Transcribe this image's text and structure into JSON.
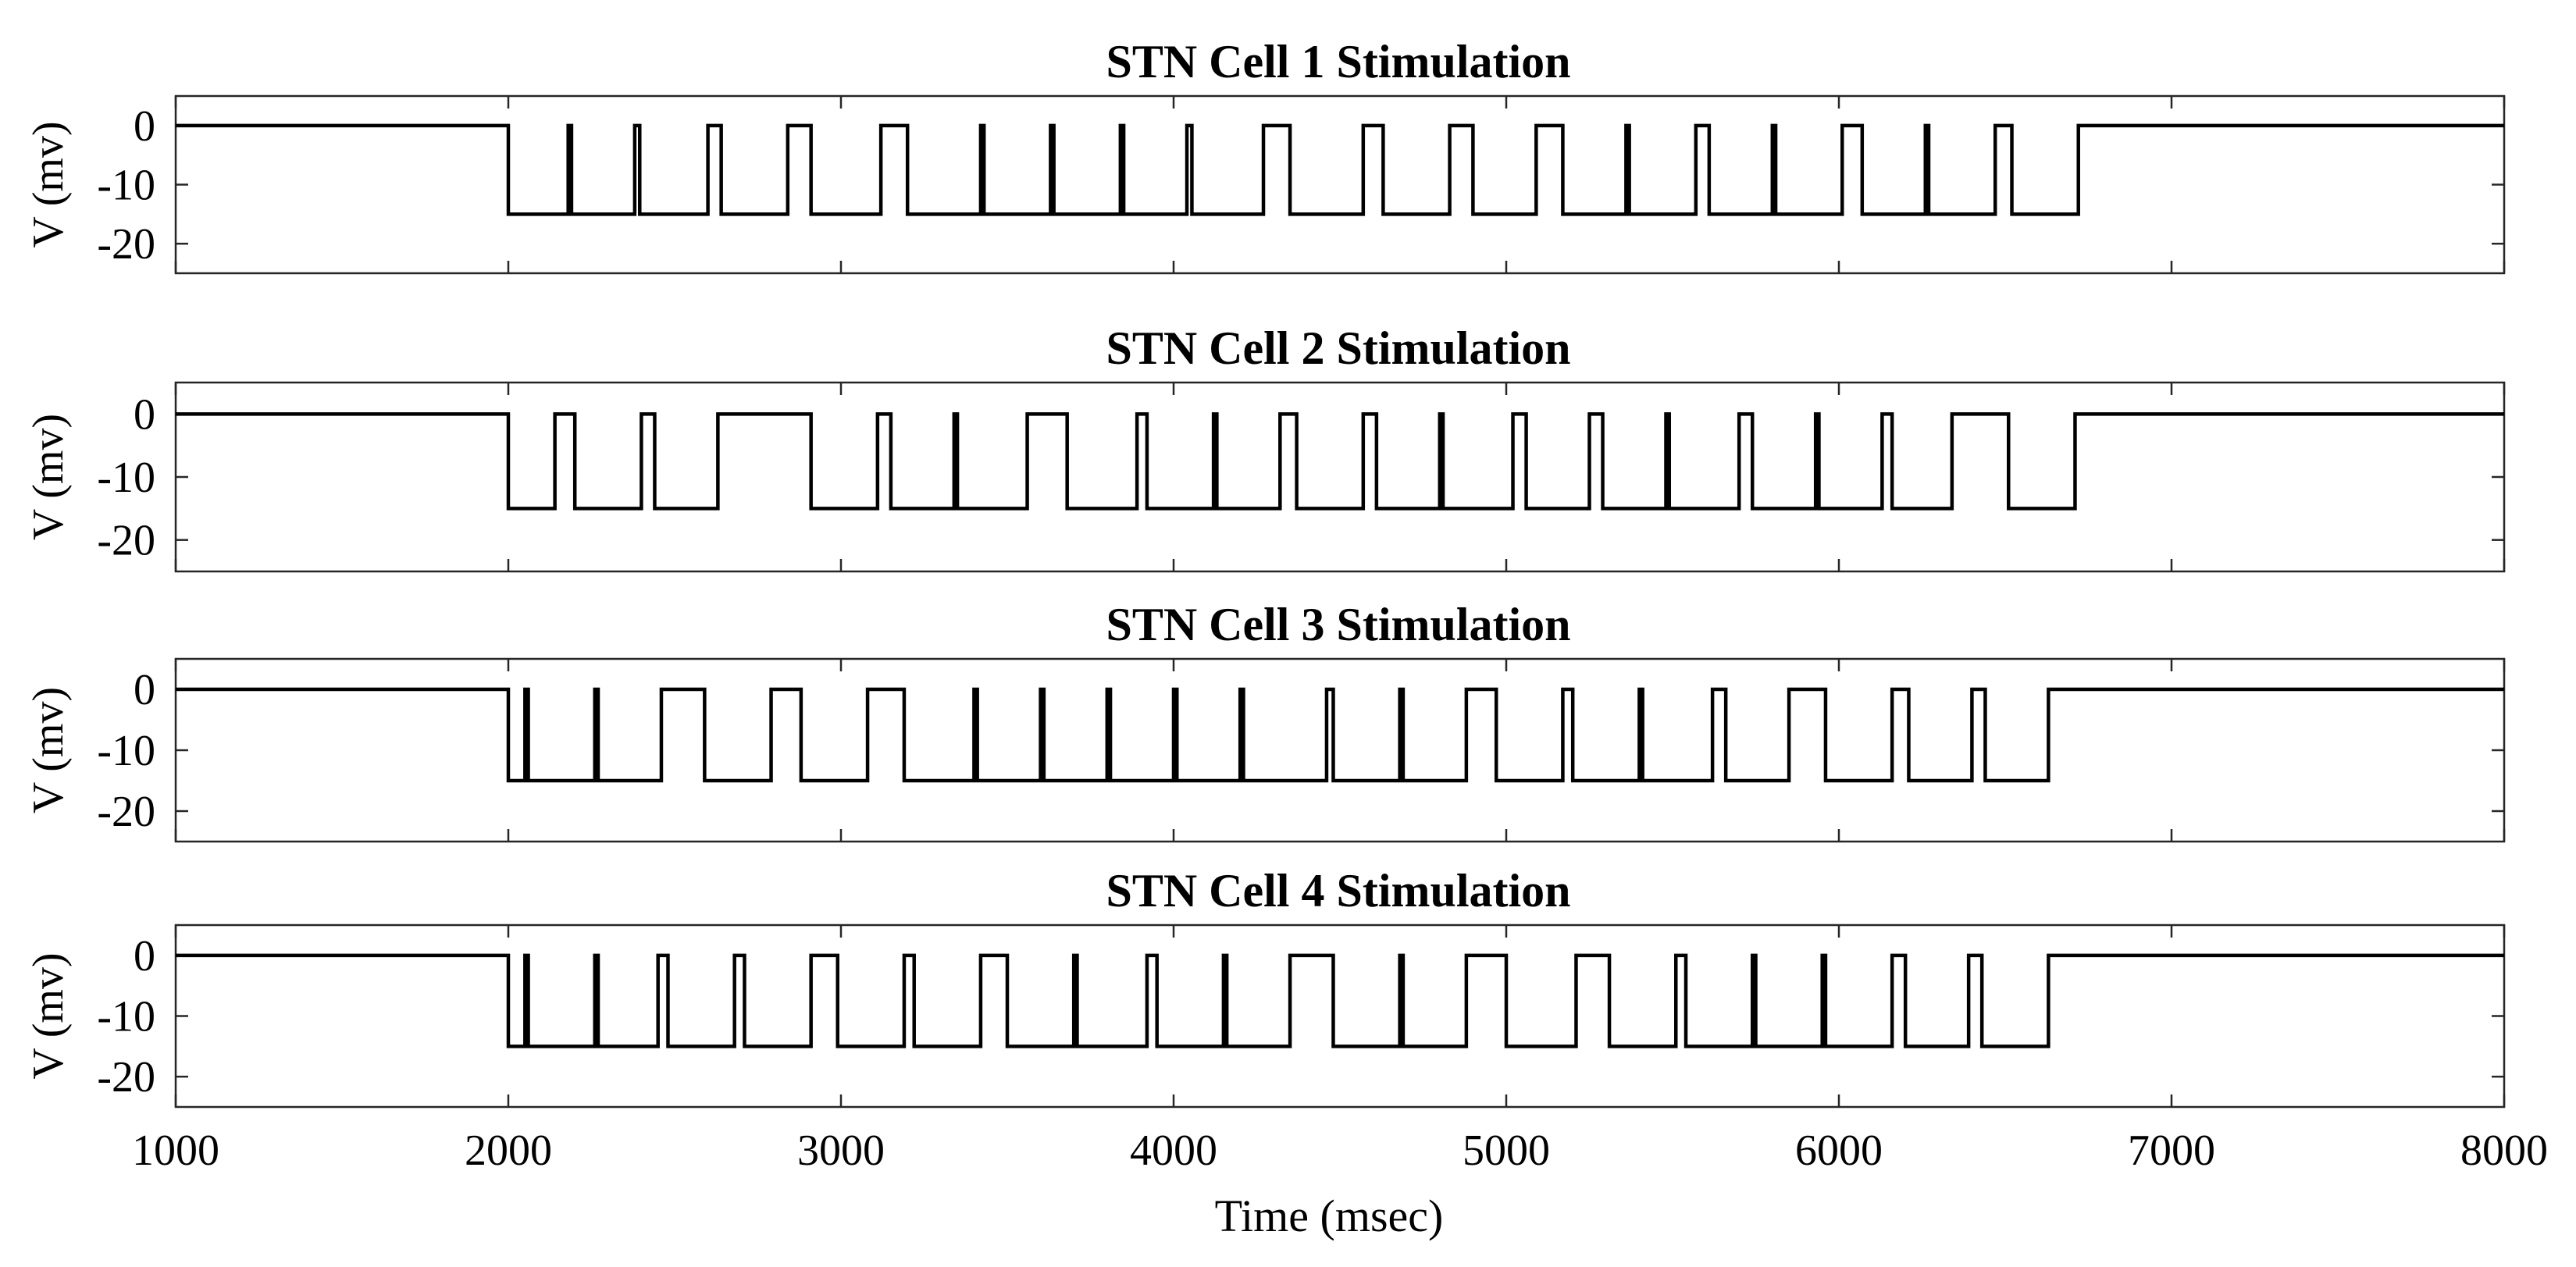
{
  "chart_data": {
    "type": "line",
    "x_label": "Time (msec)",
    "x_lim": [
      1000,
      8000
    ],
    "x_ticks": [
      1000,
      2000,
      3000,
      4000,
      5000,
      6000,
      7000,
      8000
    ],
    "grid": false,
    "panels": [
      {
        "title": "STN Cell 1 Stimulation",
        "y_label": "V (mv)",
        "y_lim": [
          -25,
          5
        ],
        "y_ticks": [
          0,
          -10,
          -20
        ],
        "baseline_mv": 0,
        "low_mv": -15,
        "low_start_ms": 2000,
        "low_end_ms": 6720,
        "pulses_ms": [
          [
            2180,
            2190
          ],
          [
            2380,
            2395
          ],
          [
            2600,
            2640
          ],
          [
            2840,
            2910
          ],
          [
            3120,
            3200
          ],
          [
            3420,
            3430
          ],
          [
            3630,
            3640
          ],
          [
            3840,
            3850
          ],
          [
            4040,
            4055
          ],
          [
            4270,
            4350
          ],
          [
            4570,
            4630
          ],
          [
            4830,
            4900
          ],
          [
            5090,
            5170
          ],
          [
            5360,
            5370
          ],
          [
            5570,
            5610
          ],
          [
            5800,
            5810
          ],
          [
            6010,
            6070
          ],
          [
            6260,
            6270
          ],
          [
            6470,
            6520
          ]
        ]
      },
      {
        "title": "STN Cell 2 Stimulation",
        "y_label": "V (mv)",
        "y_lim": [
          -25,
          5
        ],
        "y_ticks": [
          0,
          -10,
          -20
        ],
        "baseline_mv": 0,
        "low_mv": -15,
        "low_start_ms": 2000,
        "low_end_ms": 6710,
        "pulses_ms": [
          [
            2140,
            2200
          ],
          [
            2400,
            2440
          ],
          [
            2630,
            2910
          ],
          [
            3110,
            3150
          ],
          [
            3340,
            3350
          ],
          [
            3560,
            3680
          ],
          [
            3890,
            3920
          ],
          [
            4120,
            4130
          ],
          [
            4320,
            4370
          ],
          [
            4570,
            4610
          ],
          [
            4800,
            4810
          ],
          [
            5020,
            5060
          ],
          [
            5250,
            5290
          ],
          [
            5480,
            5490
          ],
          [
            5700,
            5740
          ],
          [
            5930,
            5940
          ],
          [
            6130,
            6160
          ],
          [
            6340,
            6510
          ]
        ]
      },
      {
        "title": "STN Cell 3 Stimulation",
        "y_label": "V (mv)",
        "y_lim": [
          -25,
          5
        ],
        "y_ticks": [
          0,
          -10,
          -20
        ],
        "baseline_mv": 0,
        "low_mv": -15,
        "low_start_ms": 2000,
        "low_end_ms": 6630,
        "pulses_ms": [
          [
            2050,
            2060
          ],
          [
            2260,
            2270
          ],
          [
            2460,
            2590
          ],
          [
            2790,
            2880
          ],
          [
            3080,
            3190
          ],
          [
            3400,
            3410
          ],
          [
            3600,
            3610
          ],
          [
            3800,
            3810
          ],
          [
            4000,
            4010
          ],
          [
            4200,
            4210
          ],
          [
            4460,
            4480
          ],
          [
            4680,
            4690
          ],
          [
            4880,
            4970
          ],
          [
            5170,
            5200
          ],
          [
            5400,
            5410
          ],
          [
            5620,
            5660
          ],
          [
            5850,
            5960
          ],
          [
            6160,
            6210
          ],
          [
            6400,
            6440
          ]
        ]
      },
      {
        "title": "STN Cell 4 Stimulation",
        "y_label": "V (mv)",
        "y_lim": [
          -25,
          5
        ],
        "y_ticks": [
          0,
          -10,
          -20
        ],
        "baseline_mv": 0,
        "low_mv": -15,
        "low_start_ms": 2000,
        "low_end_ms": 6630,
        "pulses_ms": [
          [
            2050,
            2060
          ],
          [
            2260,
            2270
          ],
          [
            2450,
            2480
          ],
          [
            2680,
            2710
          ],
          [
            2910,
            2990
          ],
          [
            3190,
            3220
          ],
          [
            3420,
            3500
          ],
          [
            3700,
            3710
          ],
          [
            3920,
            3950
          ],
          [
            4150,
            4160
          ],
          [
            4350,
            4480
          ],
          [
            4680,
            4690
          ],
          [
            4880,
            5000
          ],
          [
            5210,
            5310
          ],
          [
            5510,
            5540
          ],
          [
            5740,
            5750
          ],
          [
            5950,
            5960
          ],
          [
            6160,
            6200
          ],
          [
            6390,
            6430
          ]
        ]
      }
    ]
  }
}
